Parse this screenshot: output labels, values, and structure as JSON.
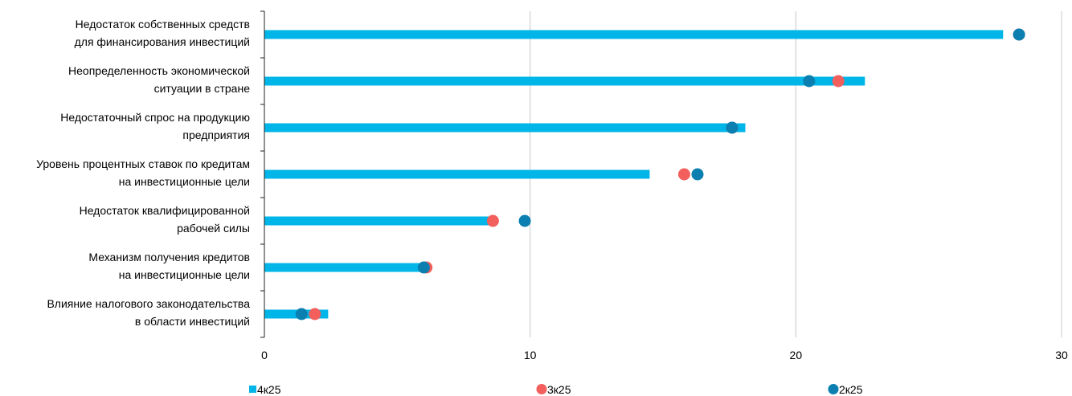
{
  "chart_data": {
    "type": "bar",
    "orientation": "horizontal",
    "title": "",
    "xlabel": "",
    "ylabel": "",
    "xlim": [
      0,
      30
    ],
    "xticks": [
      0,
      10,
      20,
      30
    ],
    "grid": "vertical",
    "legend_position": "bottom",
    "categories": [
      "Недостаток собственных средств для финансирования инвестиций",
      "Неопределенность экономической ситуации в стране",
      "Недостаточный спрос на продукцию предприятия",
      "Уровень процентных ставок по кредитам на инвестиционные цели",
      "Недостаток квалифицированной рабочей силы",
      "Механизм получения кредитов на инвестиционные цели",
      "Влияние налогового законодательства в области инвестиций"
    ],
    "category_lines": [
      [
        "Недостаток собственных средств",
        "для финансирования инвестиций"
      ],
      [
        "Неопределенность экономической",
        "ситуации в стране"
      ],
      [
        "Недостаточный спрос на продукцию",
        "предприятия"
      ],
      [
        "Уровень процентных ставок по кредитам",
        "на инвестиционные цели"
      ],
      [
        "Недостаток квалифицированной",
        "рабочей силы"
      ],
      [
        "Механизм получения кредитов",
        "на инвестиционные цели"
      ],
      [
        "Влияние налогового законодательства",
        "в области инвестиций"
      ]
    ],
    "series": [
      {
        "name": "4к25",
        "mark": "bar",
        "color": "#00b5e8",
        "values": [
          27.8,
          22.6,
          18.1,
          14.5,
          8.7,
          6.2,
          2.4
        ]
      },
      {
        "name": "3к25",
        "mark": "dot",
        "color": "#f25f5c",
        "values": [
          28.4,
          21.6,
          17.6,
          15.8,
          8.6,
          6.1,
          1.9
        ]
      },
      {
        "name": "2к25",
        "mark": "dot",
        "color": "#0a7fb0",
        "values": [
          28.4,
          20.5,
          17.6,
          16.3,
          9.8,
          6.0,
          1.4
        ]
      }
    ]
  }
}
